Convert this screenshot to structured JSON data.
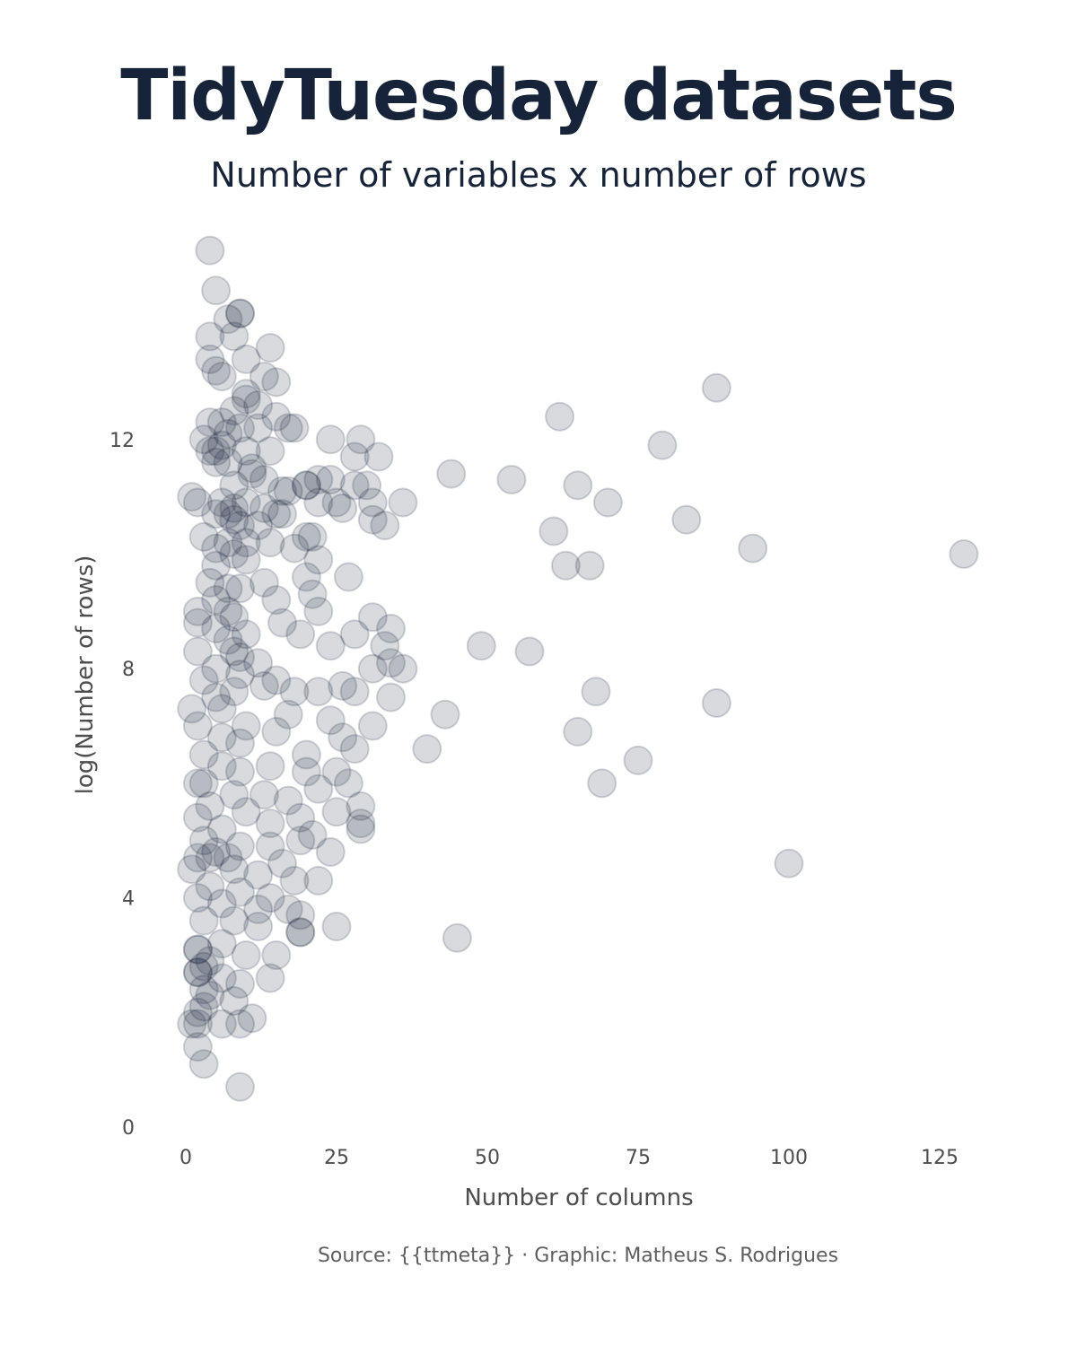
{
  "header": {
    "title": "TidyTuesday datasets",
    "subtitle": "Number of variables x number of rows"
  },
  "footer": {
    "caption": "Source: {{ttmeta}} · Graphic: Matheus S. Rodrigues"
  },
  "colors": {
    "point_fill": "#172339",
    "point_stroke": "#172339",
    "text_dark": "#172339",
    "axis_text": "#4d4d4d"
  },
  "chart_data": {
    "type": "scatter",
    "title": "TidyTuesday datasets",
    "subtitle": "Number of variables x number of rows",
    "xlabel": "Number of columns",
    "ylabel": "log(Number of rows)",
    "xlim": [
      0,
      130
    ],
    "ylim": [
      0,
      15.5
    ],
    "xticks": [
      0,
      25,
      50,
      75,
      100,
      125
    ],
    "yticks": [
      0,
      4,
      8,
      12
    ],
    "xtick_labels": [
      "0",
      "25",
      "50",
      "75",
      "100",
      "125"
    ],
    "ytick_labels": [
      "0",
      "4",
      "8",
      "12"
    ],
    "grid": false,
    "legend": "none",
    "point_opacity": 0.17,
    "points": [
      [
        4,
        15.3
      ],
      [
        5,
        14.6
      ],
      [
        9,
        14.2
      ],
      [
        9,
        14.2
      ],
      [
        7,
        14.1
      ],
      [
        8,
        13.8
      ],
      [
        4,
        13.8
      ],
      [
        14,
        13.6
      ],
      [
        10,
        13.4
      ],
      [
        4,
        13.4
      ],
      [
        5,
        13.2
      ],
      [
        6,
        13.1
      ],
      [
        13,
        13.1
      ],
      [
        15,
        13.0
      ],
      [
        88,
        12.9
      ],
      [
        10,
        12.8
      ],
      [
        10,
        12.7
      ],
      [
        12,
        12.6
      ],
      [
        8,
        12.5
      ],
      [
        62,
        12.4
      ],
      [
        15,
        12.4
      ],
      [
        6,
        12.3
      ],
      [
        4,
        12.3
      ],
      [
        9,
        12.2
      ],
      [
        17,
        12.2
      ],
      [
        18,
        12.2
      ],
      [
        12,
        12.2
      ],
      [
        7,
        12.1
      ],
      [
        24,
        12.0
      ],
      [
        29,
        12.0
      ],
      [
        3,
        12.0
      ],
      [
        6,
        11.9
      ],
      [
        79,
        11.9
      ],
      [
        5,
        11.8
      ],
      [
        10,
        11.8
      ],
      [
        4,
        11.8
      ],
      [
        14,
        11.8
      ],
      [
        28,
        11.7
      ],
      [
        32,
        11.7
      ],
      [
        5,
        11.6
      ],
      [
        7,
        11.6
      ],
      [
        11,
        11.5
      ],
      [
        11,
        11.4
      ],
      [
        44,
        11.4
      ],
      [
        54,
        11.3
      ],
      [
        13,
        11.3
      ],
      [
        22,
        11.3
      ],
      [
        24,
        11.3
      ],
      [
        65,
        11.2
      ],
      [
        20,
        11.2
      ],
      [
        20,
        11.2
      ],
      [
        28,
        11.2
      ],
      [
        30,
        11.2
      ],
      [
        8,
        11.2
      ],
      [
        16,
        11.1
      ],
      [
        17,
        11.1
      ],
      [
        1,
        11.0
      ],
      [
        2,
        10.9
      ],
      [
        6,
        10.9
      ],
      [
        10,
        10.9
      ],
      [
        22,
        10.9
      ],
      [
        25,
        10.9
      ],
      [
        31,
        10.9
      ],
      [
        36,
        10.9
      ],
      [
        70,
        10.9
      ],
      [
        8,
        10.8
      ],
      [
        13,
        10.8
      ],
      [
        26,
        10.8
      ],
      [
        7,
        10.7
      ],
      [
        15,
        10.7
      ],
      [
        16,
        10.7
      ],
      [
        5,
        10.7
      ],
      [
        8,
        10.6
      ],
      [
        83,
        10.6
      ],
      [
        31,
        10.6
      ],
      [
        9,
        10.5
      ],
      [
        12,
        10.5
      ],
      [
        33,
        10.5
      ],
      [
        61,
        10.4
      ],
      [
        3,
        10.3
      ],
      [
        20,
        10.3
      ],
      [
        21,
        10.3
      ],
      [
        7,
        10.2
      ],
      [
        10,
        10.2
      ],
      [
        14,
        10.2
      ],
      [
        18,
        10.1
      ],
      [
        94,
        10.1
      ],
      [
        5,
        10.1
      ],
      [
        8,
        10.0
      ],
      [
        129,
        10.0
      ],
      [
        22,
        9.9
      ],
      [
        10,
        9.9
      ],
      [
        63,
        9.8
      ],
      [
        67,
        9.8
      ],
      [
        5,
        9.8
      ],
      [
        20,
        9.6
      ],
      [
        27,
        9.6
      ],
      [
        13,
        9.5
      ],
      [
        4,
        9.5
      ],
      [
        7,
        9.4
      ],
      [
        9,
        9.4
      ],
      [
        21,
        9.3
      ],
      [
        5,
        9.2
      ],
      [
        15,
        9.2
      ],
      [
        22,
        9.0
      ],
      [
        2,
        9.0
      ],
      [
        7,
        9.0
      ],
      [
        31,
        8.9
      ],
      [
        8,
        8.9
      ],
      [
        16,
        8.8
      ],
      [
        2,
        8.8
      ],
      [
        5,
        8.7
      ],
      [
        34,
        8.7
      ],
      [
        10,
        8.6
      ],
      [
        19,
        8.6
      ],
      [
        28,
        8.6
      ],
      [
        7,
        8.5
      ],
      [
        24,
        8.4
      ],
      [
        33,
        8.4
      ],
      [
        49,
        8.4
      ],
      [
        57,
        8.3
      ],
      [
        8,
        8.3
      ],
      [
        2,
        8.3
      ],
      [
        9,
        8.2
      ],
      [
        12,
        8.1
      ],
      [
        34,
        8.1
      ],
      [
        36,
        8.0
      ],
      [
        31,
        8.0
      ],
      [
        5,
        8.0
      ],
      [
        9,
        7.9
      ],
      [
        15,
        7.8
      ],
      [
        3,
        7.8
      ],
      [
        26,
        7.7
      ],
      [
        13,
        7.7
      ],
      [
        18,
        7.6
      ],
      [
        22,
        7.6
      ],
      [
        28,
        7.6
      ],
      [
        8,
        7.6
      ],
      [
        68,
        7.6
      ],
      [
        34,
        7.5
      ],
      [
        5,
        7.5
      ],
      [
        88,
        7.4
      ],
      [
        1,
        7.3
      ],
      [
        6,
        7.3
      ],
      [
        43,
        7.2
      ],
      [
        17,
        7.2
      ],
      [
        24,
        7.1
      ],
      [
        10,
        7.0
      ],
      [
        2,
        7.0
      ],
      [
        31,
        7.0
      ],
      [
        65,
        6.9
      ],
      [
        15,
        6.9
      ],
      [
        26,
        6.8
      ],
      [
        6,
        6.8
      ],
      [
        9,
        6.7
      ],
      [
        40,
        6.6
      ],
      [
        28,
        6.6
      ],
      [
        20,
        6.5
      ],
      [
        3,
        6.5
      ],
      [
        75,
        6.4
      ],
      [
        14,
        6.3
      ],
      [
        6,
        6.3
      ],
      [
        25,
        6.2
      ],
      [
        9,
        6.2
      ],
      [
        20,
        6.2
      ],
      [
        2,
        6.0
      ],
      [
        3,
        6.0
      ],
      [
        69,
        6.0
      ],
      [
        27,
        6.0
      ],
      [
        22,
        5.9
      ],
      [
        8,
        5.8
      ],
      [
        13,
        5.8
      ],
      [
        17,
        5.7
      ],
      [
        4,
        5.6
      ],
      [
        29,
        5.6
      ],
      [
        10,
        5.5
      ],
      [
        25,
        5.5
      ],
      [
        2,
        5.4
      ],
      [
        19,
        5.4
      ],
      [
        14,
        5.3
      ],
      [
        29,
        5.3
      ],
      [
        29,
        5.2
      ],
      [
        6,
        5.2
      ],
      [
        21,
        5.1
      ],
      [
        3,
        5.0
      ],
      [
        19,
        5.0
      ],
      [
        9,
        4.9
      ],
      [
        14,
        4.9
      ],
      [
        24,
        4.8
      ],
      [
        5,
        4.8
      ],
      [
        4,
        4.7
      ],
      [
        2,
        4.7
      ],
      [
        7,
        4.7
      ],
      [
        100,
        4.6
      ],
      [
        16,
        4.6
      ],
      [
        1,
        4.5
      ],
      [
        8,
        4.5
      ],
      [
        12,
        4.4
      ],
      [
        18,
        4.3
      ],
      [
        22,
        4.3
      ],
      [
        4,
        4.2
      ],
      [
        9,
        4.1
      ],
      [
        2,
        4.0
      ],
      [
        14,
        4.0
      ],
      [
        6,
        3.9
      ],
      [
        17,
        3.8
      ],
      [
        12,
        3.8
      ],
      [
        19,
        3.7
      ],
      [
        3,
        3.6
      ],
      [
        8,
        3.6
      ],
      [
        25,
        3.5
      ],
      [
        12,
        3.5
      ],
      [
        19,
        3.4
      ],
      [
        19,
        3.4
      ],
      [
        45,
        3.3
      ],
      [
        6,
        3.2
      ],
      [
        2,
        3.1
      ],
      [
        2,
        3.1
      ],
      [
        10,
        3.0
      ],
      [
        15,
        3.0
      ],
      [
        4,
        2.9
      ],
      [
        3,
        2.8
      ],
      [
        2,
        2.7
      ],
      [
        2,
        2.7
      ],
      [
        6,
        2.6
      ],
      [
        14,
        2.6
      ],
      [
        9,
        2.5
      ],
      [
        3,
        2.4
      ],
      [
        4,
        2.3
      ],
      [
        8,
        2.2
      ],
      [
        3,
        2.1
      ],
      [
        2,
        2.0
      ],
      [
        11,
        1.9
      ],
      [
        1,
        1.8
      ],
      [
        2,
        1.8
      ],
      [
        6,
        1.8
      ],
      [
        9,
        1.8
      ],
      [
        2,
        1.4
      ],
      [
        3,
        1.1
      ],
      [
        9,
        0.7
      ]
    ]
  }
}
